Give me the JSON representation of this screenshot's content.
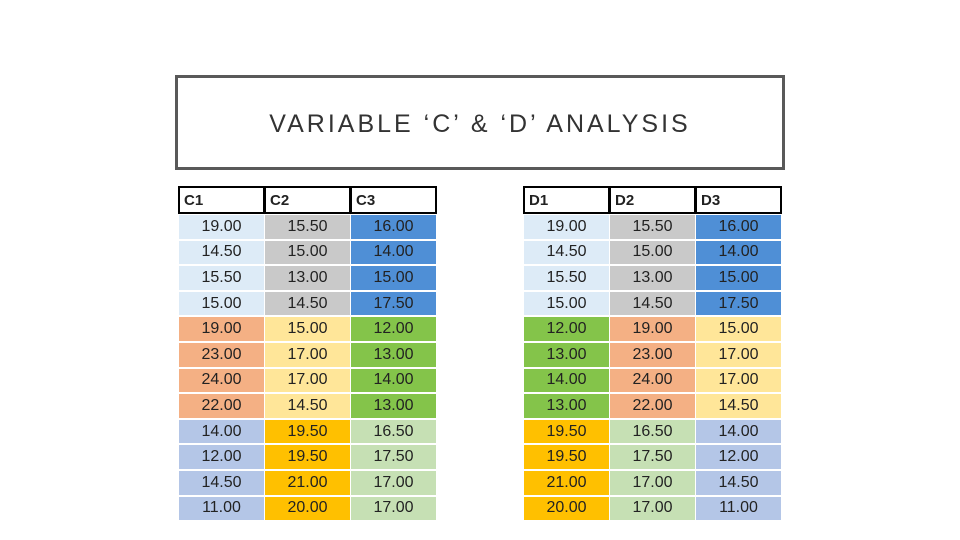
{
  "header": {
    "title": "VARIABLE ‘C’ & ‘D’ ANALYSIS"
  },
  "tables": [
    {
      "columns": [
        "C1",
        "C2",
        "C3"
      ],
      "rows": [
        [
          "19.00",
          "15.50",
          "16.00"
        ],
        [
          "14.50",
          "15.00",
          "14.00"
        ],
        [
          "15.50",
          "13.00",
          "15.00"
        ],
        [
          "15.00",
          "14.50",
          "17.50"
        ],
        [
          "19.00",
          "15.00",
          "12.00"
        ],
        [
          "23.00",
          "17.00",
          "13.00"
        ],
        [
          "24.00",
          "17.00",
          "14.00"
        ],
        [
          "22.00",
          "14.50",
          "13.00"
        ],
        [
          "14.00",
          "19.50",
          "16.50"
        ],
        [
          "12.00",
          "19.50",
          "17.50"
        ],
        [
          "14.50",
          "21.00",
          "17.00"
        ],
        [
          "11.00",
          "20.00",
          "17.00"
        ]
      ],
      "cell_colors": [
        [
          "#ddebf7",
          "#c9c9c9",
          "#4f8fd6"
        ],
        [
          "#ddebf7",
          "#c9c9c9",
          "#4f8fd6"
        ],
        [
          "#ddebf7",
          "#c9c9c9",
          "#4f8fd6"
        ],
        [
          "#ddebf7",
          "#c9c9c9",
          "#4f8fd6"
        ],
        [
          "#f4b084",
          "#ffe699",
          "#84c44a"
        ],
        [
          "#f4b084",
          "#ffe699",
          "#84c44a"
        ],
        [
          "#f4b084",
          "#ffe699",
          "#84c44a"
        ],
        [
          "#f4b084",
          "#ffe699",
          "#84c44a"
        ],
        [
          "#b4c6e7",
          "#ffc000",
          "#c6e0b4"
        ],
        [
          "#b4c6e7",
          "#ffc000",
          "#c6e0b4"
        ],
        [
          "#b4c6e7",
          "#ffc000",
          "#c6e0b4"
        ],
        [
          "#b4c6e7",
          "#ffc000",
          "#c6e0b4"
        ]
      ]
    },
    {
      "columns": [
        "D1",
        "D2",
        "D3"
      ],
      "rows": [
        [
          "19.00",
          "15.50",
          "16.00"
        ],
        [
          "14.50",
          "15.00",
          "14.00"
        ],
        [
          "15.50",
          "13.00",
          "15.00"
        ],
        [
          "15.00",
          "14.50",
          "17.50"
        ],
        [
          "12.00",
          "19.00",
          "15.00"
        ],
        [
          "13.00",
          "23.00",
          "17.00"
        ],
        [
          "14.00",
          "24.00",
          "17.00"
        ],
        [
          "13.00",
          "22.00",
          "14.50"
        ],
        [
          "19.50",
          "16.50",
          "14.00"
        ],
        [
          "19.50",
          "17.50",
          "12.00"
        ],
        [
          "21.00",
          "17.00",
          "14.50"
        ],
        [
          "20.00",
          "17.00",
          "11.00"
        ]
      ],
      "cell_colors": [
        [
          "#ddebf7",
          "#c9c9c9",
          "#4f8fd6"
        ],
        [
          "#ddebf7",
          "#c9c9c9",
          "#4f8fd6"
        ],
        [
          "#ddebf7",
          "#c9c9c9",
          "#4f8fd6"
        ],
        [
          "#ddebf7",
          "#c9c9c9",
          "#4f8fd6"
        ],
        [
          "#84c44a",
          "#f4b084",
          "#ffe699"
        ],
        [
          "#84c44a",
          "#f4b084",
          "#ffe699"
        ],
        [
          "#84c44a",
          "#f4b084",
          "#ffe699"
        ],
        [
          "#84c44a",
          "#f4b084",
          "#ffe699"
        ],
        [
          "#ffc000",
          "#c6e0b4",
          "#b4c6e7"
        ],
        [
          "#ffc000",
          "#c6e0b4",
          "#b4c6e7"
        ],
        [
          "#ffc000",
          "#c6e0b4",
          "#b4c6e7"
        ],
        [
          "#ffc000",
          "#c6e0b4",
          "#b4c6e7"
        ]
      ]
    }
  ]
}
